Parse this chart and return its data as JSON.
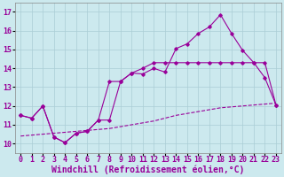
{
  "xlabel": "Windchill (Refroidissement éolien,°C)",
  "bg_color": "#cce9ee",
  "grid_color": "#aacdd5",
  "line_color": "#990099",
  "xlim": [
    -0.5,
    23.5
  ],
  "ylim": [
    9.5,
    17.5
  ],
  "xticks": [
    0,
    1,
    2,
    3,
    4,
    5,
    6,
    7,
    8,
    9,
    10,
    11,
    12,
    13,
    14,
    15,
    16,
    17,
    18,
    19,
    20,
    21,
    22,
    23
  ],
  "yticks": [
    10,
    11,
    12,
    13,
    14,
    15,
    16,
    17
  ],
  "line1_x": [
    0,
    1,
    2,
    3,
    4,
    5,
    6,
    7,
    8,
    9,
    10,
    11,
    12,
    13,
    14,
    15,
    16,
    17,
    18,
    19,
    20,
    21,
    22,
    23
  ],
  "line1_y": [
    11.5,
    11.35,
    12.0,
    10.35,
    10.05,
    10.55,
    10.65,
    11.25,
    11.25,
    13.3,
    13.75,
    13.7,
    14.0,
    13.8,
    15.05,
    15.3,
    15.85,
    16.2,
    16.85,
    15.85,
    14.95,
    14.3,
    13.5,
    12.05
  ],
  "line2_x": [
    0,
    1,
    2,
    3,
    4,
    5,
    6,
    7,
    8,
    9,
    10,
    11,
    12,
    13,
    14,
    15,
    16,
    17,
    18,
    19,
    20,
    21,
    22,
    23
  ],
  "line2_y": [
    11.5,
    11.35,
    12.0,
    10.35,
    10.05,
    10.55,
    10.65,
    11.25,
    13.3,
    13.3,
    13.75,
    14.0,
    14.3,
    14.3,
    14.3,
    14.3,
    14.3,
    14.3,
    14.3,
    14.3,
    14.3,
    14.3,
    14.3,
    12.05
  ],
  "line3_x": [
    0,
    1,
    2,
    3,
    4,
    5,
    6,
    7,
    8,
    9,
    10,
    11,
    12,
    13,
    14,
    15,
    16,
    17,
    18,
    19,
    20,
    21,
    22,
    23
  ],
  "line3_y": [
    10.4,
    10.45,
    10.5,
    10.55,
    10.6,
    10.65,
    10.7,
    10.75,
    10.8,
    10.9,
    11.0,
    11.1,
    11.2,
    11.35,
    11.5,
    11.6,
    11.7,
    11.8,
    11.9,
    11.95,
    12.0,
    12.05,
    12.1,
    12.15
  ],
  "font_size_label": 7,
  "font_size_tick": 6
}
